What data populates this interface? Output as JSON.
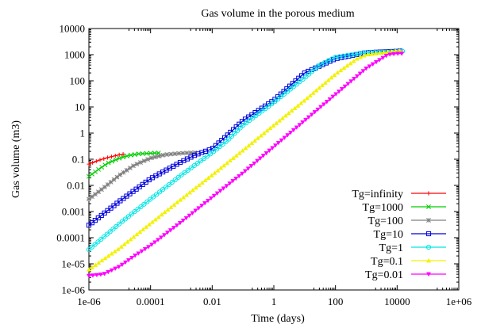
{
  "chart_data": {
    "type": "line",
    "title": "Gas volume in the porous medium",
    "xlabel": "Time (days)",
    "ylabel": "Gas volume (m3)",
    "x_scale": "log",
    "y_scale": "log",
    "xlim": [
      1e-06,
      1000000.0
    ],
    "ylim": [
      1e-06,
      10000
    ],
    "x_ticks": [
      1e-06,
      0.0001,
      0.01,
      1,
      100,
      10000.0,
      1000000.0
    ],
    "x_tick_labels": [
      "1e-06",
      "0.0001",
      "0.01",
      "1",
      "100",
      "10000",
      "1e+06"
    ],
    "y_ticks": [
      1e-06,
      1e-05,
      0.0001,
      0.001,
      0.01,
      0.1,
      1,
      10,
      100,
      1000,
      10000
    ],
    "y_tick_labels": [
      "1e-06",
      "1e-05",
      "0.0001",
      "0.001",
      "0.01",
      "0.1",
      "1",
      "10",
      "100",
      "1000",
      "10000"
    ],
    "grid": false,
    "legend_position": "bottom-right",
    "series": [
      {
        "name": "Tg=infinity",
        "color": "#ff0000",
        "marker": "plus",
        "points": [
          [
            1e-06,
            0.065
          ],
          [
            2e-06,
            0.09
          ],
          [
            4e-06,
            0.115
          ],
          [
            7e-06,
            0.135
          ],
          [
            1e-05,
            0.15
          ],
          [
            1.5e-05,
            0.16
          ]
        ]
      },
      {
        "name": "Tg=1000",
        "color": "#00cc00",
        "marker": "cross",
        "points": [
          [
            1e-06,
            0.022
          ],
          [
            2e-06,
            0.04
          ],
          [
            4e-06,
            0.07
          ],
          [
            1e-05,
            0.11
          ],
          [
            2e-05,
            0.14
          ],
          [
            4e-05,
            0.16
          ],
          [
            0.0001,
            0.17
          ],
          [
            0.0002,
            0.175
          ]
        ]
      },
      {
        "name": "Tg=100",
        "color": "#808080",
        "marker": "star",
        "points": [
          [
            1e-06,
            0.003
          ],
          [
            3e-06,
            0.008
          ],
          [
            1e-05,
            0.025
          ],
          [
            3e-05,
            0.06
          ],
          [
            0.0001,
            0.11
          ],
          [
            0.0003,
            0.15
          ],
          [
            0.001,
            0.17
          ],
          [
            0.003,
            0.18
          ]
        ]
      },
      {
        "name": "Tg=10",
        "color": "#0000dd",
        "marker": "square",
        "points": [
          [
            1e-06,
            0.0003
          ],
          [
            1e-05,
            0.0025
          ],
          [
            0.0001,
            0.018
          ],
          [
            0.001,
            0.08
          ],
          [
            0.003,
            0.15
          ],
          [
            0.01,
            0.25
          ],
          [
            0.03,
            0.8
          ],
          [
            0.1,
            3
          ],
          [
            1,
            18
          ],
          [
            10,
            200
          ],
          [
            100,
            700
          ],
          [
            1000,
            1200
          ],
          [
            10000,
            1350
          ],
          [
            15000,
            1400
          ]
        ]
      },
      {
        "name": "Tg=1",
        "color": "#00e5e5",
        "marker": "circle",
        "points": [
          [
            1e-06,
            3.5e-05
          ],
          [
            1e-05,
            0.00035
          ],
          [
            0.0001,
            0.003
          ],
          [
            0.001,
            0.025
          ],
          [
            0.01,
            0.18
          ],
          [
            0.03,
            0.5
          ],
          [
            0.1,
            2
          ],
          [
            1,
            15
          ],
          [
            10,
            130
          ],
          [
            30,
            400
          ],
          [
            100,
            800
          ],
          [
            1000,
            1200
          ],
          [
            10000,
            1300
          ],
          [
            15000,
            1350
          ]
        ]
      },
      {
        "name": "Tg=0.1",
        "color": "#f2f200",
        "marker": "triangle-up",
        "points": [
          [
            1e-06,
            6e-06
          ],
          [
            1e-05,
            4e-05
          ],
          [
            0.0001,
            0.00035
          ],
          [
            0.001,
            0.003
          ],
          [
            0.01,
            0.025
          ],
          [
            0.1,
            0.22
          ],
          [
            1,
            2
          ],
          [
            10,
            18
          ],
          [
            100,
            180
          ],
          [
            500,
            700
          ],
          [
            1000,
            1000
          ],
          [
            10000,
            1400
          ],
          [
            15000,
            1400
          ]
        ]
      },
      {
        "name": "Tg=0.01",
        "color": "#ff00ff",
        "marker": "triangle-down",
        "points": [
          [
            1e-06,
            3.5e-06
          ],
          [
            3e-06,
            4e-06
          ],
          [
            1e-05,
            8e-06
          ],
          [
            3e-05,
            2e-05
          ],
          [
            0.0001,
            5e-05
          ],
          [
            0.001,
            0.0004
          ],
          [
            0.01,
            0.0035
          ],
          [
            0.1,
            0.03
          ],
          [
            1,
            0.3
          ],
          [
            10,
            3
          ],
          [
            100,
            30
          ],
          [
            1000,
            300
          ],
          [
            5000,
            1000
          ],
          [
            10000,
            1100
          ],
          [
            15000,
            1100
          ]
        ]
      }
    ]
  }
}
